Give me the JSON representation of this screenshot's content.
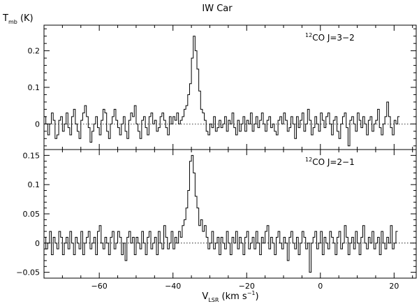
{
  "title": "IW Car",
  "x_axis": {
    "label_main": "V",
    "label_sub": "LSR",
    "label_rest": " (km s",
    "label_sup": "−1",
    "label_end": ")",
    "range": [
      -75,
      26
    ],
    "ticks": [
      -60,
      -40,
      -20,
      0,
      20
    ],
    "tick_labels": [
      "−60",
      "−40",
      "−20",
      "0",
      "20"
    ],
    "minor_step": 5
  },
  "y_axis": {
    "label_main": "T",
    "label_sub": "mb",
    "label_rest": " (K)"
  },
  "chart_data": [
    {
      "type": "line",
      "style": "step",
      "panel": "top",
      "label_pre": "12",
      "label_main": "CO J=3−2",
      "ylim": [
        -0.07,
        0.27
      ],
      "y_ticks": [
        0,
        0.1,
        0.2
      ],
      "y_tick_labels": [
        "0",
        "0.1",
        "0.2"
      ],
      "y_minor_step": 0.02,
      "baseline": 0,
      "x_start": -75,
      "x_step": 0.5,
      "values": [
        0.02,
        0.0,
        -0.03,
        0.0,
        0.03,
        0.01,
        -0.04,
        -0.03,
        0.01,
        0.02,
        -0.02,
        0.0,
        0.03,
        -0.01,
        -0.03,
        0.02,
        0.04,
        0.0,
        -0.02,
        -0.04,
        0.01,
        0.03,
        0.05,
        0.02,
        -0.01,
        -0.05,
        -0.02,
        0.0,
        0.02,
        -0.01,
        -0.03,
        0.01,
        0.04,
        0.03,
        -0.02,
        -0.04,
        0.0,
        0.02,
        0.04,
        0.01,
        -0.01,
        -0.03,
        0.0,
        0.02,
        -0.02,
        -0.04,
        0.01,
        0.03,
        0.02,
        0.05,
        0.0,
        -0.02,
        -0.04,
        0.01,
        0.02,
        -0.01,
        -0.03,
        0.02,
        0.03,
        0.0,
        0.01,
        -0.02,
        -0.01,
        0.02,
        0.03,
        0.01,
        -0.01,
        -0.03,
        0.02,
        0.0,
        0.02,
        0.01,
        0.03,
        0.0,
        0.01,
        0.02,
        0.04,
        0.05,
        0.08,
        0.11,
        0.18,
        0.24,
        0.2,
        0.15,
        0.09,
        0.04,
        0.03,
        0.01,
        -0.02,
        -0.03,
        0.0,
        -0.01,
        0.02,
        -0.02,
        -0.01,
        0.01,
        -0.01,
        0.0,
        0.02,
        -0.02,
        0.01,
        0.0,
        0.03,
        -0.01,
        -0.03,
        0.01,
        -0.02,
        0.0,
        0.02,
        -0.02,
        0.01,
        0.0,
        0.03,
        -0.02,
        0.0,
        0.02,
        -0.01,
        0.01,
        0.03,
        0.0,
        -0.02,
        0.01,
        0.02,
        -0.01,
        0.0,
        -0.02,
        -0.03,
        0.01,
        0.02,
        0.0,
        0.03,
        0.01,
        -0.02,
        -0.01,
        0.02,
        0.0,
        -0.04,
        0.02,
        -0.01,
        0.01,
        0.03,
        -0.02,
        0.0,
        0.04,
        0.01,
        -0.03,
        -0.01,
        0.02,
        0.0,
        -0.02,
        0.03,
        0.01,
        -0.01,
        0.02,
        0.03,
        0.0,
        -0.03,
        0.01,
        0.02,
        -0.02,
        -0.04,
        0.0,
        0.02,
        0.03,
        -0.01,
        -0.06,
        0.01,
        0.02,
        0.0,
        -0.02,
        0.03,
        0.01,
        -0.01,
        0.02,
        0.0,
        -0.03,
        0.01,
        0.02,
        -0.02,
        0.0,
        0.01,
        0.04,
        -0.01,
        -0.03,
        0.0,
        0.02,
        0.06,
        0.02,
        -0.01,
        -0.03,
        0.01,
        0.0,
        0.02
      ]
    },
    {
      "type": "line",
      "style": "step",
      "panel": "bottom",
      "label_pre": "12",
      "label_main": "CO J=2−1",
      "ylim": [
        -0.06,
        0.16
      ],
      "y_ticks": [
        -0.05,
        0,
        0.05,
        0.1,
        0.15
      ],
      "y_tick_labels": [
        "−0.05",
        "0",
        "0.05",
        "0.1",
        "0.15"
      ],
      "y_minor_step": 0.01,
      "baseline": 0,
      "x_start": -75,
      "x_step": 0.5,
      "values": [
        0.01,
        -0.01,
        0.0,
        0.02,
        -0.02,
        0.01,
        0.0,
        -0.01,
        0.02,
        0.01,
        -0.02,
        0.0,
        0.01,
        -0.01,
        0.02,
        0.0,
        -0.02,
        0.01,
        0.0,
        -0.01,
        0.02,
        -0.02,
        0.0,
        0.01,
        0.02,
        -0.01,
        0.0,
        0.01,
        -0.02,
        0.02,
        0.03,
        0.0,
        -0.01,
        0.01,
        0.0,
        -0.02,
        0.01,
        0.02,
        -0.01,
        0.0,
        0.02,
        0.01,
        -0.02,
        0.0,
        -0.03,
        0.01,
        0.02,
        0.0,
        0.01,
        -0.02,
        0.01,
        0.0,
        -0.01,
        0.02,
        0.0,
        -0.02,
        0.01,
        0.02,
        -0.01,
        0.0,
        0.01,
        -0.02,
        0.02,
        0.0,
        -0.01,
        0.03,
        0.01,
        -0.01,
        0.0,
        0.02,
        -0.01,
        0.01,
        0.0,
        0.02,
        0.01,
        0.03,
        0.04,
        0.06,
        0.09,
        0.14,
        0.15,
        0.12,
        0.08,
        0.06,
        0.03,
        0.04,
        0.02,
        0.03,
        0.01,
        -0.01,
        0.0,
        0.02,
        -0.01,
        0.0,
        0.01,
        -0.02,
        0.01,
        0.0,
        -0.01,
        0.02,
        0.0,
        -0.02,
        0.01,
        0.0,
        0.02,
        -0.01,
        0.01,
        0.0,
        -0.02,
        0.01,
        0.02,
        -0.01,
        0.0,
        0.01,
        -0.01,
        0.02,
        0.0,
        -0.02,
        0.01,
        0.0,
        0.02,
        0.03,
        -0.01,
        0.01,
        0.0,
        -0.02,
        0.01,
        0.02,
        0.0,
        -0.01,
        0.01,
        0.0,
        -0.03,
        0.01,
        0.02,
        0.0,
        -0.01,
        0.01,
        -0.02,
        0.0,
        0.02,
        0.01,
        -0.01,
        0.0,
        -0.05,
        0.0,
        0.01,
        0.02,
        -0.01,
        0.0,
        0.02,
        -0.02,
        0.01,
        0.0,
        -0.01,
        0.02,
        0.01,
        0.0,
        -0.02,
        0.01,
        0.02,
        -0.01,
        0.0,
        0.03,
        0.01,
        -0.02,
        0.0,
        0.01,
        -0.01,
        0.02,
        0.0,
        -0.02,
        0.01,
        0.03,
        0.0,
        -0.01,
        0.01,
        0.0,
        0.02,
        -0.01,
        0.0,
        0.01,
        -0.02,
        0.02,
        0.0,
        -0.01,
        0.01,
        0.0,
        0.03,
        -0.01,
        0.0,
        0.02
      ]
    }
  ]
}
